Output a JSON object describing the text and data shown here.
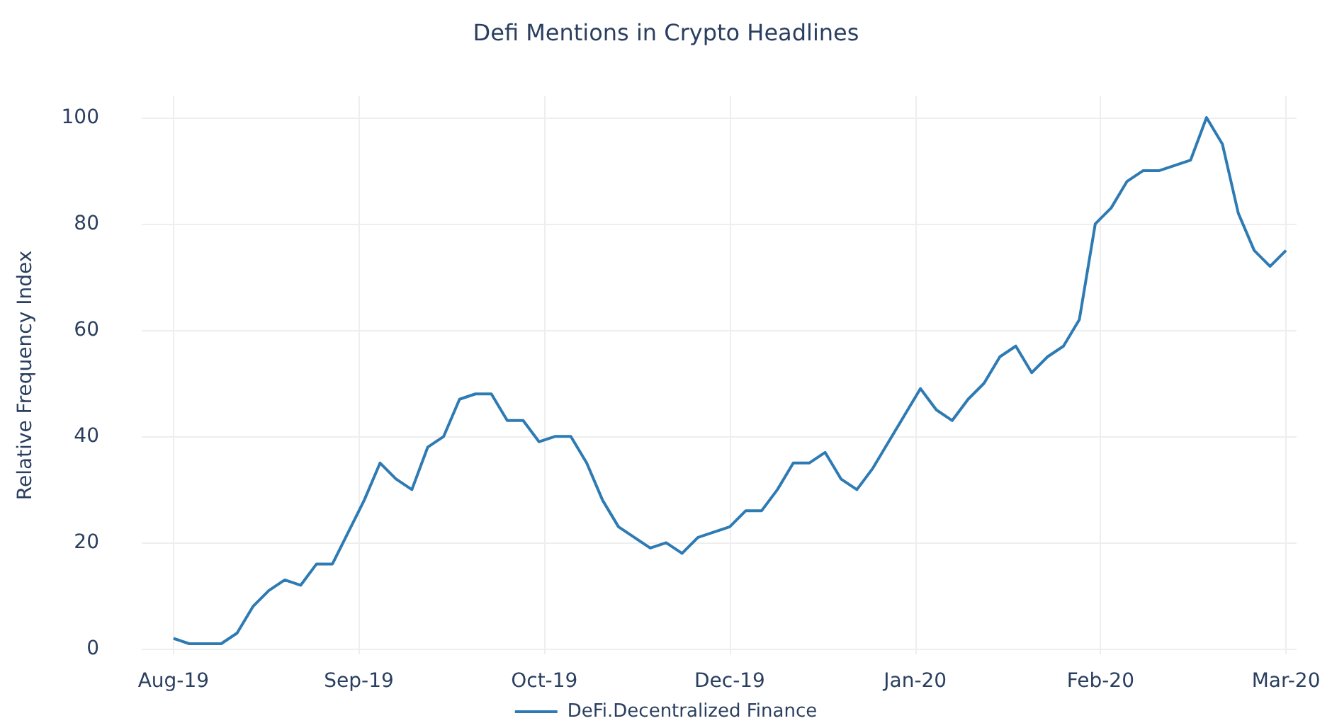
{
  "chart_data": {
    "type": "line",
    "title": "Defi Mentions in Crypto Headlines",
    "ylabel": "Relative Frequency Index",
    "x": [
      "2019-08-20",
      "2019-08-23",
      "2019-08-26",
      "2019-08-29",
      "2019-09-01",
      "2019-09-04",
      "2019-09-07",
      "2019-09-10",
      "2019-09-13",
      "2019-09-16",
      "2019-09-19",
      "2019-09-22",
      "2019-09-25",
      "2019-09-28",
      "2019-10-01",
      "2019-10-04",
      "2019-10-07",
      "2019-10-10",
      "2019-10-13",
      "2019-10-16",
      "2019-10-19",
      "2019-10-22",
      "2019-10-25",
      "2019-10-28",
      "2019-10-31",
      "2019-11-03",
      "2019-11-06",
      "2019-11-09",
      "2019-11-12",
      "2019-11-15",
      "2019-11-18",
      "2019-11-21",
      "2019-11-24",
      "2019-11-27",
      "2019-11-30",
      "2019-12-03",
      "2019-12-06",
      "2019-12-09",
      "2019-12-12",
      "2019-12-15",
      "2019-12-18",
      "2019-12-21",
      "2019-12-24",
      "2019-12-27",
      "2019-12-30",
      "2020-01-02",
      "2020-01-05",
      "2020-01-08",
      "2020-01-11",
      "2020-01-14",
      "2020-01-17",
      "2020-01-20",
      "2020-01-23",
      "2020-01-26",
      "2020-01-29",
      "2020-02-01",
      "2020-02-04",
      "2020-02-07",
      "2020-02-10",
      "2020-02-13",
      "2020-02-16",
      "2020-02-19",
      "2020-02-22",
      "2020-02-25",
      "2020-02-28",
      "2020-03-02",
      "2020-03-05",
      "2020-03-08",
      "2020-03-11",
      "2020-03-14",
      "2020-03-17"
    ],
    "series": [
      {
        "name": "DeFi.Decentralized Finance",
        "color": "#2e7bb4",
        "values": [
          2,
          1,
          1,
          1,
          3,
          8,
          11,
          13,
          12,
          16,
          16,
          22,
          28,
          35,
          32,
          30,
          38,
          40,
          47,
          48,
          48,
          43,
          43,
          39,
          40,
          40,
          35,
          28,
          23,
          21,
          19,
          20,
          18,
          21,
          22,
          23,
          26,
          26,
          30,
          35,
          35,
          37,
          32,
          30,
          34,
          39,
          44,
          49,
          45,
          43,
          47,
          50,
          55,
          57,
          52,
          55,
          57,
          62,
          80,
          83,
          88,
          90,
          90,
          91,
          92,
          100,
          95,
          82,
          75,
          72,
          75
        ]
      }
    ],
    "xlim": [
      "2019-08-14",
      "2020-03-19"
    ],
    "xticks": [
      {
        "value": "2019-08-20",
        "label": "Aug-19"
      },
      {
        "value": "2019-09-24",
        "label": "Sep-19"
      },
      {
        "value": "2019-10-29",
        "label": "Oct-19"
      },
      {
        "value": "2019-12-03",
        "label": "Dec-19"
      },
      {
        "value": "2020-01-07",
        "label": "Jan-20"
      },
      {
        "value": "2020-02-11",
        "label": "Feb-20"
      },
      {
        "value": "2020-03-17",
        "label": "Mar-20"
      }
    ],
    "ylim": [
      -1,
      104
    ],
    "yticks": [
      0,
      20,
      40,
      60,
      80,
      100
    ],
    "grid": true,
    "legend": "bottom",
    "marker": "none",
    "line_style": "solid"
  }
}
